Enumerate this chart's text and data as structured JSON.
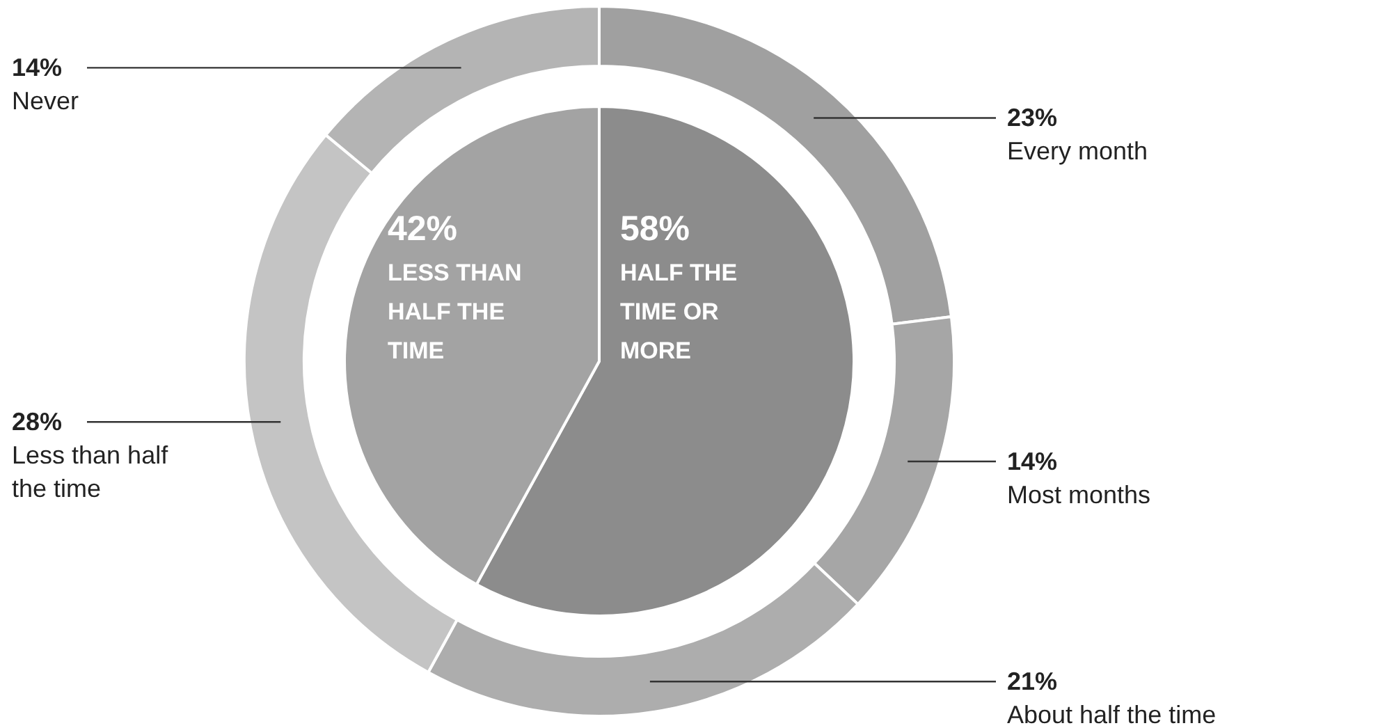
{
  "chart_data": {
    "type": "donut",
    "categories": [
      "Every month",
      "Most months",
      "About half the time",
      "Less than half the time",
      "Never"
    ],
    "series": [
      {
        "values": [
          23,
          14,
          21,
          28,
          14
        ],
        "colors": [
          "#a0a0a0",
          "#a6a6a6",
          "#adadad",
          "#c4c4c4",
          "#b4b4b4"
        ],
        "value_labels": [
          "23%",
          "14%",
          "21%",
          "28%",
          "14%"
        ]
      },
      {
        "type": "pie",
        "values": [
          58,
          null,
          null,
          42,
          null
        ],
        "colors": [
          "#8c8c8c",
          null,
          null,
          "#a3a3a3",
          null
        ],
        "value_labels": [
          "58%",
          null,
          null,
          "42%",
          null
        ]
      }
    ],
    "annotations": [
      "HALF THE TIME OR MORE",
      "LESS THAN HALF THE TIME"
    ]
  }
}
